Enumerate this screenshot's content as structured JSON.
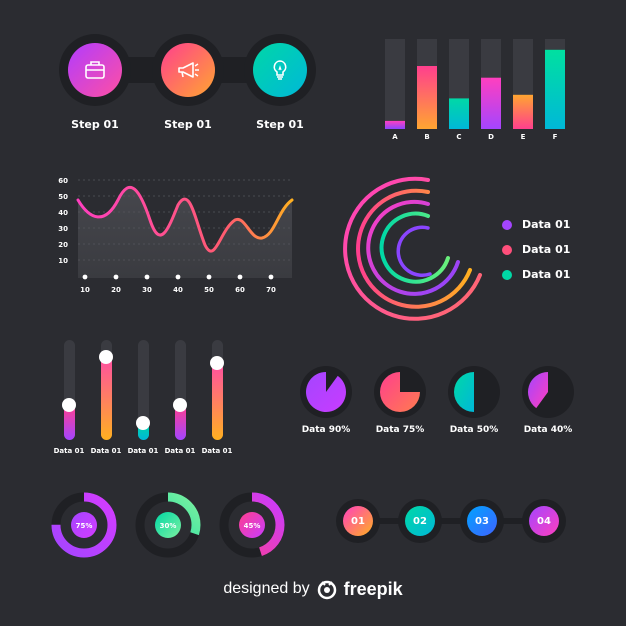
{
  "steps": [
    {
      "label": "Step 01",
      "icon": "briefcase-icon",
      "color_from": "#b13cff",
      "color_to": "#ff4fa3"
    },
    {
      "label": "Step 01",
      "icon": "megaphone-icon",
      "color_from": "#ff3f8e",
      "color_to": "#ffa531"
    },
    {
      "label": "Step 01",
      "icon": "lightbulb-icon",
      "color_from": "#00d7a7",
      "color_to": "#00b8d8"
    }
  ],
  "bar_chart": {
    "type": "bar",
    "categories": [
      "A",
      "B",
      "C",
      "D",
      "E",
      "F"
    ],
    "values": [
      0.09,
      0.7,
      0.34,
      0.57,
      0.38,
      0.88
    ],
    "ylim": [
      0,
      1
    ]
  },
  "line_chart": {
    "type": "line",
    "yticks": [
      "60",
      "50",
      "40",
      "30",
      "20",
      "10"
    ],
    "xticks": [
      "10",
      "20",
      "30",
      "40",
      "50",
      "60",
      "70"
    ]
  },
  "arcs_legend": [
    {
      "label": "Data 01",
      "color": "#a445ff"
    },
    {
      "label": "Data 01",
      "color": "#ff4f7b"
    },
    {
      "label": "Data 01",
      "color": "#00d8a6"
    }
  ],
  "sliders": [
    {
      "label": "Data 01",
      "value": 0.35,
      "from": "#ff3f8e",
      "to": "#a445ff"
    },
    {
      "label": "Data 01",
      "value": 0.83,
      "from": "#ff4fa3",
      "to": "#ffb020"
    },
    {
      "label": "Data 01",
      "value": 0.17,
      "from": "#00d8a6",
      "to": "#00b8d8"
    },
    {
      "label": "Data 01",
      "value": 0.35,
      "from": "#ff3f8e",
      "to": "#a445ff"
    },
    {
      "label": "Data 01",
      "value": 0.77,
      "from": "#ff4fa3",
      "to": "#ffb020"
    }
  ],
  "pies": [
    {
      "label": "Data 90%",
      "value": 0.9,
      "from": "#a445ff",
      "to": "#c83cff"
    },
    {
      "label": "Data 75%",
      "value": 0.75,
      "from": "#ff3f8e",
      "to": "#ff7b4f"
    },
    {
      "label": "Data 50%",
      "value": 0.5,
      "from": "#00d8a6",
      "to": "#00b8d8"
    },
    {
      "label": "Data 40%",
      "value": 0.4,
      "from": "#a445ff",
      "to": "#ff3fbf"
    }
  ],
  "donuts": [
    {
      "label": "75%",
      "value": 0.75,
      "from": "#a445ff",
      "to": "#d43cff"
    },
    {
      "label": "30%",
      "value": 0.3,
      "from": "#00d8a6",
      "to": "#7cf0a0"
    },
    {
      "label": "45%",
      "value": 0.45,
      "from": "#ff3f8e",
      "to": "#c83cff"
    }
  ],
  "timeline": [
    {
      "label": "01",
      "from": "#ff3fbf",
      "to": "#ffb020"
    },
    {
      "label": "02",
      "from": "#00d8a6",
      "to": "#00b8d8"
    },
    {
      "label": "03",
      "from": "#00a3ff",
      "to": "#3f63ff"
    },
    {
      "label": "04",
      "from": "#a445ff",
      "to": "#ff3fbf"
    }
  ],
  "footer": {
    "text": "designed by",
    "brand": "freepik"
  }
}
